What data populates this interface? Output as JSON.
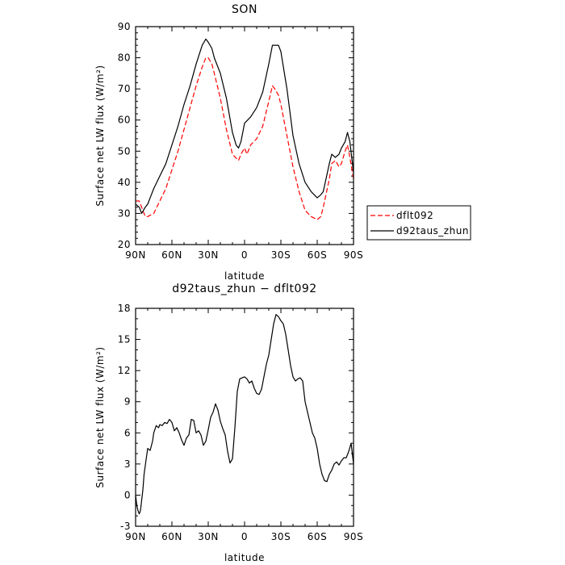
{
  "chart_data": [
    {
      "type": "line",
      "title": "SON",
      "xlabel": "latitude",
      "ylabel": "Surface net LW flux (W/m²)",
      "xticks": [
        "90N",
        "60N",
        "30N",
        "0",
        "30S",
        "60S",
        "90S"
      ],
      "xlim": [
        90,
        -90
      ],
      "ylim": [
        20,
        90
      ],
      "yticks": [
        20,
        30,
        40,
        50,
        60,
        70,
        80,
        90
      ],
      "grid": false,
      "legend": "right",
      "series": [
        {
          "name": "dflt092",
          "color": "#ff0000",
          "dash": "dashed",
          "x": [
            90,
            87,
            85,
            82,
            80,
            75,
            70,
            65,
            60,
            55,
            50,
            45,
            40,
            35,
            32,
            30,
            27,
            25,
            20,
            15,
            10,
            5,
            3,
            0,
            -2,
            -5,
            -10,
            -15,
            -20,
            -23,
            -25,
            -28,
            -30,
            -35,
            -40,
            -45,
            -50,
            -55,
            -60,
            -63,
            -65,
            -70,
            -72,
            -75,
            -78,
            -80,
            -83,
            -85,
            -87,
            -90
          ],
          "y": [
            34,
            34,
            32,
            29,
            29,
            30,
            34,
            38,
            44,
            50,
            57,
            64,
            71,
            77,
            80,
            80,
            78,
            75,
            67,
            57,
            49,
            47,
            49,
            51,
            49,
            52,
            54,
            58,
            66,
            71,
            70,
            68,
            65,
            55,
            45,
            37,
            31,
            29,
            28,
            29,
            32,
            41,
            46,
            47,
            45,
            46,
            50,
            52,
            48,
            41
          ]
        },
        {
          "name": "d92taus_zhun",
          "color": "#000000",
          "dash": "solid",
          "x": [
            90,
            87,
            85,
            82,
            80,
            77,
            75,
            70,
            65,
            60,
            55,
            50,
            45,
            40,
            35,
            32,
            30,
            27,
            25,
            20,
            15,
            10,
            7,
            5,
            3,
            0,
            -5,
            -10,
            -15,
            -20,
            -23,
            -25,
            -28,
            -30,
            -35,
            -40,
            -45,
            -50,
            -55,
            -60,
            -63,
            -65,
            -70,
            -72,
            -75,
            -78,
            -80,
            -83,
            -85,
            -87,
            -90
          ],
          "y": [
            33,
            32,
            30,
            32,
            33,
            36,
            38,
            42,
            46,
            52,
            58,
            65,
            71,
            78,
            84,
            86,
            85,
            83,
            80,
            75,
            67,
            56,
            52,
            51,
            53,
            59,
            61,
            64,
            69,
            78,
            84,
            84,
            84,
            82,
            70,
            55,
            46,
            40,
            37,
            35,
            36,
            37,
            46,
            49,
            48,
            49,
            51,
            53,
            56,
            53,
            43
          ]
        }
      ]
    },
    {
      "type": "line",
      "title": "d92taus_zhun − dflt092",
      "xlabel": "latitude",
      "ylabel": "Surface net LW flux (W/m²)",
      "xticks": [
        "90N",
        "60N",
        "30N",
        "0",
        "30S",
        "60S",
        "90S"
      ],
      "xlim": [
        90,
        -90
      ],
      "ylim": [
        -3,
        18
      ],
      "yticks": [
        -3,
        0,
        3,
        6,
        9,
        12,
        15,
        18
      ],
      "grid": false,
      "series": [
        {
          "color": "#000000",
          "dash": "solid",
          "x": [
            90,
            89,
            88,
            87,
            86,
            85,
            84,
            83,
            81,
            80,
            78,
            76,
            75,
            73,
            71,
            70,
            68,
            66,
            64,
            62,
            60,
            58,
            56,
            54,
            52,
            50,
            48,
            46,
            44,
            42,
            40,
            38,
            36,
            34,
            32,
            30,
            28,
            26,
            24,
            22,
            20,
            18,
            16,
            14,
            12,
            10,
            8,
            6,
            4,
            2,
            0,
            -2,
            -4,
            -6,
            -8,
            -10,
            -12,
            -14,
            -16,
            -18,
            -20,
            -22,
            -24,
            -26,
            -28,
            -30,
            -32,
            -34,
            -36,
            -38,
            -40,
            -42,
            -44,
            -46,
            -48,
            -50,
            -52,
            -54,
            -56,
            -58,
            -60,
            -62,
            -64,
            -66,
            -68,
            -70,
            -72,
            -74,
            -76,
            -78,
            -80,
            -82,
            -84,
            -86,
            -88,
            -90
          ],
          "y": [
            0,
            -1,
            -1.5,
            -1.8,
            -1.5,
            -0.5,
            0.5,
            2,
            3.7,
            4.5,
            4.3,
            5.2,
            6,
            6.7,
            6.5,
            6.8,
            6.7,
            7,
            6.9,
            7.3,
            7,
            6.2,
            6.5,
            6,
            5.3,
            4.8,
            5.5,
            5.8,
            7.3,
            7.2,
            6,
            6.2,
            5.8,
            4.8,
            5.2,
            6.3,
            7.5,
            8,
            8.8,
            8.2,
            7.1,
            6.4,
            5.8,
            4.2,
            3.1,
            3.5,
            6.5,
            10,
            11.2,
            11.3,
            11.4,
            11.2,
            10.8,
            11,
            10.3,
            9.8,
            9.7,
            10.2,
            11.4,
            12.6,
            13.5,
            15,
            16.5,
            17.4,
            17.2,
            16.8,
            16.5,
            15.5,
            14,
            12.5,
            11.4,
            11,
            11.2,
            11.3,
            11,
            9,
            8,
            7,
            6,
            5.5,
            4.5,
            3,
            2,
            1.4,
            1.3,
            2.0,
            2.4,
            3.0,
            3.2,
            2.9,
            3.3,
            3.6,
            3.6,
            4.2,
            5.0,
            3.0
          ]
        }
      ]
    }
  ]
}
